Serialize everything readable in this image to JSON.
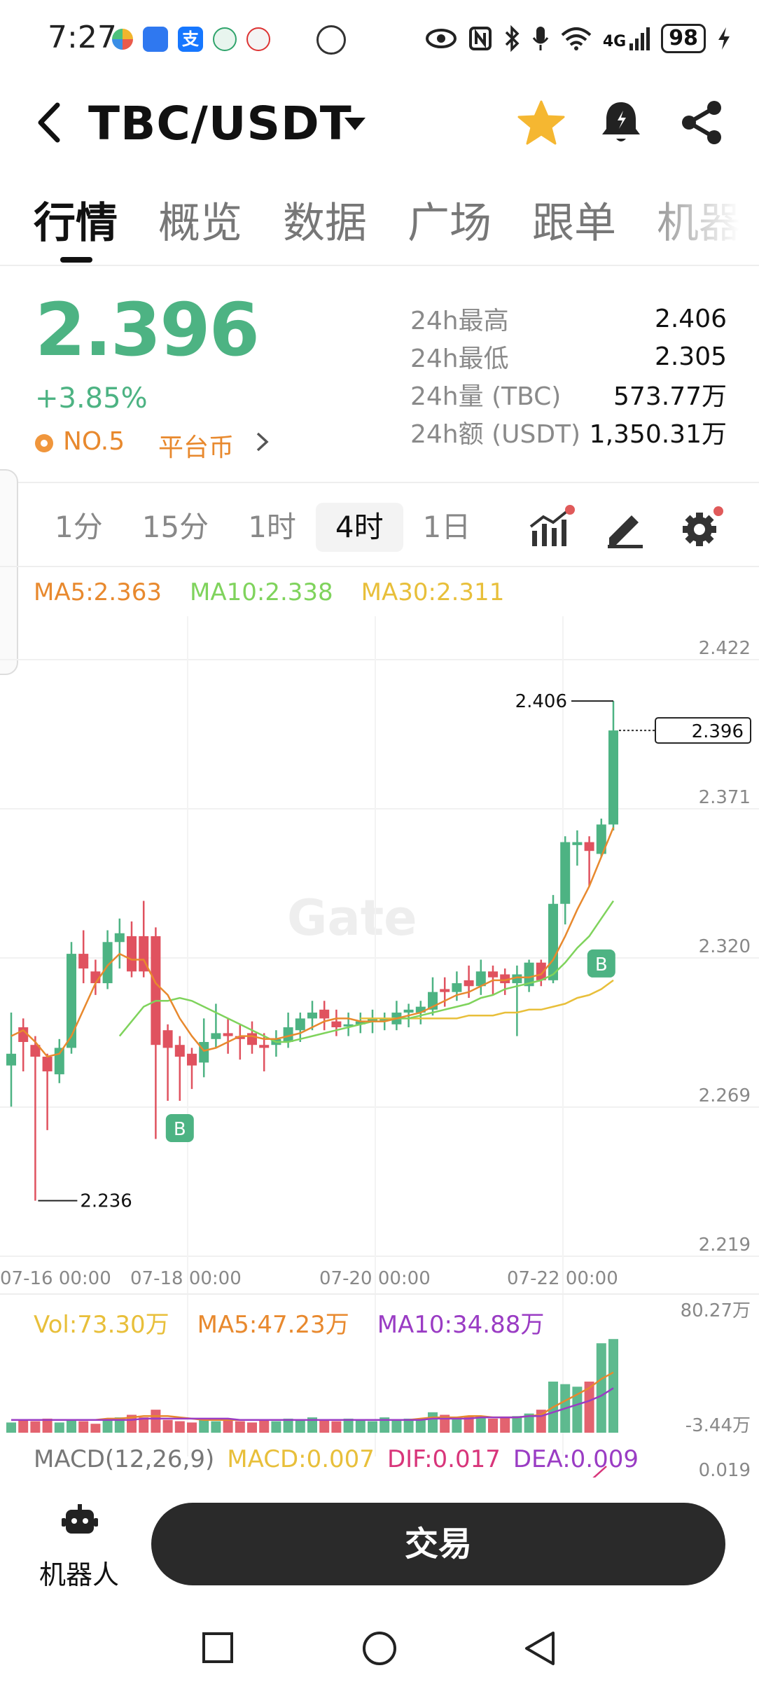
{
  "status_bar": {
    "time": "7:27",
    "network": "4G",
    "battery": "98"
  },
  "header": {
    "pair": "TBC/USDT"
  },
  "tabs": [
    {
      "label": "行情",
      "active": true
    },
    {
      "label": "概览",
      "active": false
    },
    {
      "label": "数据",
      "active": false
    },
    {
      "label": "广场",
      "active": false
    },
    {
      "label": "跟单",
      "active": false
    },
    {
      "label": "机器",
      "active": false
    }
  ],
  "price": {
    "last": "2.396",
    "change": "+3.85%",
    "rank": "NO.5",
    "category": "平台币"
  },
  "stats": [
    {
      "label": "24h最高",
      "value": "2.406"
    },
    {
      "label": "24h最低",
      "value": "2.305"
    },
    {
      "label": "24h量 (TBC)",
      "value": "573.77万"
    },
    {
      "label": "24h额 (USDT)",
      "value": "1,350.31万"
    }
  ],
  "intervals": [
    {
      "label": "1分",
      "active": false
    },
    {
      "label": "15分",
      "active": false
    },
    {
      "label": "1时",
      "active": false
    },
    {
      "label": "4时",
      "active": true
    },
    {
      "label": "1日",
      "active": false
    }
  ],
  "ma_legend": {
    "ma5": "MA5:2.363",
    "ma10": "MA10:2.338",
    "ma30": "MA30:2.311"
  },
  "colors": {
    "up": "#4db383",
    "down": "#e0525f",
    "ma5": "#e8892e",
    "ma10": "#7fd35c",
    "ma30": "#e8bf3a",
    "ma10_vol": "#9a3cc4"
  },
  "chart_data": {
    "type": "candlestick",
    "y_ticks": [
      "2.422",
      "2.371",
      "2.320",
      "2.269",
      "2.219"
    ],
    "x_ticks": [
      "07-16 00:00",
      "07-18 00:00",
      "07-20 00:00",
      "07-22 00:00"
    ],
    "high_label": "2.406",
    "low_label": "2.236",
    "current_label": "2.396",
    "watermark": "Gate",
    "buy_marker": "B",
    "candles": [
      [
        2.282,
        2.286,
        2.3,
        2.268
      ],
      [
        2.295,
        2.29,
        2.298,
        2.28
      ],
      [
        2.289,
        2.285,
        2.292,
        2.236
      ],
      [
        2.285,
        2.28,
        2.286,
        2.26
      ],
      [
        2.279,
        2.288,
        2.291,
        2.276
      ],
      [
        2.288,
        2.32,
        2.324,
        2.286
      ],
      [
        2.32,
        2.315,
        2.328,
        2.31
      ],
      [
        2.314,
        2.31,
        2.318,
        2.306
      ],
      [
        2.31,
        2.324,
        2.328,
        2.308
      ],
      [
        2.324,
        2.327,
        2.332,
        2.315
      ],
      [
        2.326,
        2.314,
        2.331,
        2.312
      ],
      [
        2.326,
        2.314,
        2.338,
        2.312
      ],
      [
        2.326,
        2.289,
        2.329,
        2.257
      ],
      [
        2.294,
        2.288,
        2.296,
        2.27
      ],
      [
        2.289,
        2.285,
        2.292,
        2.27
      ],
      [
        2.286,
        2.282,
        2.288,
        2.274
      ],
      [
        2.283,
        2.29,
        2.298,
        2.278
      ],
      [
        2.291,
        2.293,
        2.303,
        2.288
      ],
      [
        2.293,
        2.292,
        2.298,
        2.286
      ],
      [
        2.292,
        2.291,
        2.296,
        2.284
      ],
      [
        2.293,
        2.289,
        2.297,
        2.286
      ],
      [
        2.289,
        2.288,
        2.293,
        2.28
      ],
      [
        2.289,
        2.291,
        2.294,
        2.285
      ],
      [
        2.29,
        2.295,
        2.3,
        2.288
      ],
      [
        2.294,
        2.298,
        2.3,
        2.29
      ],
      [
        2.298,
        2.3,
        2.304,
        2.294
      ],
      [
        2.301,
        2.298,
        2.304,
        2.294
      ],
      [
        2.297,
        2.295,
        2.301,
        2.292
      ],
      [
        2.296,
        2.296,
        2.3,
        2.292
      ],
      [
        2.296,
        2.297,
        2.3,
        2.293
      ],
      [
        2.297,
        2.298,
        2.301,
        2.293
      ],
      [
        2.298,
        2.298,
        2.3,
        2.294
      ],
      [
        2.296,
        2.3,
        2.304,
        2.294
      ],
      [
        2.3,
        2.301,
        2.303,
        2.295
      ],
      [
        2.3,
        2.302,
        2.304,
        2.296
      ],
      [
        2.301,
        2.307,
        2.312,
        2.299
      ],
      [
        2.308,
        2.307,
        2.312,
        2.302
      ],
      [
        2.307,
        2.31,
        2.314,
        2.304
      ],
      [
        2.311,
        2.309,
        2.316,
        2.305
      ],
      [
        2.309,
        2.314,
        2.318,
        2.306
      ],
      [
        2.314,
        2.312,
        2.316,
        2.306
      ],
      [
        2.313,
        2.31,
        2.315,
        2.306
      ],
      [
        2.31,
        2.313,
        2.316,
        2.292
      ],
      [
        2.309,
        2.317,
        2.318,
        2.307
      ],
      [
        2.317,
        2.311,
        2.318,
        2.309
      ],
      [
        2.311,
        2.337,
        2.34,
        2.31
      ],
      [
        2.337,
        2.358,
        2.36,
        2.33
      ],
      [
        2.357,
        2.358,
        2.362,
        2.35
      ],
      [
        2.358,
        2.355,
        2.36,
        2.343
      ],
      [
        2.354,
        2.364,
        2.366,
        2.353
      ],
      [
        2.364,
        2.396,
        2.406,
        2.362
      ]
    ],
    "ma5": [
      2.292,
      2.294,
      2.29,
      2.285,
      2.286,
      2.292,
      2.301,
      2.31,
      2.316,
      2.32,
      2.318,
      2.318,
      2.31,
      2.306,
      2.298,
      2.292,
      2.287,
      2.288,
      2.29,
      2.292,
      2.292,
      2.291,
      2.291,
      2.292,
      2.293,
      2.295,
      2.297,
      2.298,
      2.298,
      2.297,
      2.297,
      2.297,
      2.298,
      2.299,
      2.3,
      2.302,
      2.304,
      2.306,
      2.307,
      2.309,
      2.311,
      2.311,
      2.312,
      2.312,
      2.313,
      2.318,
      2.326,
      2.335,
      2.343,
      2.353,
      2.363
    ],
    "ma10": [
      null,
      null,
      null,
      null,
      null,
      null,
      null,
      null,
      null,
      2.292,
      2.297,
      2.302,
      2.304,
      2.304,
      2.305,
      2.304,
      2.302,
      2.3,
      2.298,
      2.296,
      2.294,
      2.292,
      2.29,
      2.29,
      2.291,
      2.292,
      2.293,
      2.294,
      2.295,
      2.296,
      2.297,
      2.297,
      2.298,
      2.298,
      2.299,
      2.3,
      2.301,
      2.302,
      2.303,
      2.305,
      2.306,
      2.308,
      2.309,
      2.31,
      2.311,
      2.313,
      2.317,
      2.322,
      2.326,
      2.332,
      2.338
    ],
    "ma30": [
      null,
      null,
      null,
      null,
      null,
      null,
      null,
      null,
      null,
      null,
      null,
      null,
      null,
      null,
      null,
      null,
      null,
      null,
      null,
      null,
      null,
      null,
      null,
      null,
      null,
      null,
      null,
      null,
      null,
      2.298,
      2.298,
      2.298,
      2.298,
      2.298,
      2.298,
      2.298,
      2.298,
      2.298,
      2.299,
      2.299,
      2.299,
      2.3,
      2.3,
      2.301,
      2.301,
      2.302,
      2.303,
      2.305,
      2.306,
      2.308,
      2.311
    ],
    "volume": {
      "legend_vol": "Vol:73.30万",
      "legend_ma5": "MA5:47.23万",
      "legend_ma10": "MA10:34.88万",
      "y_ticks": [
        "80.27万",
        "-3.44万"
      ],
      "values": [
        8,
        10,
        9,
        11,
        8,
        10,
        9,
        7,
        10,
        12,
        14,
        12,
        18,
        10,
        9,
        8,
        10,
        9,
        11,
        9,
        8,
        10,
        9,
        11,
        10,
        12,
        10,
        9,
        11,
        10,
        9,
        12,
        10,
        11,
        10,
        16,
        14,
        12,
        13,
        12,
        11,
        12,
        13,
        15,
        18,
        40,
        38,
        36,
        40,
        70,
        73.3
      ],
      "ma5": [
        10,
        10,
        10,
        10,
        10,
        10,
        10,
        10,
        11,
        11,
        12,
        13,
        13,
        13,
        12,
        11,
        10,
        10,
        10,
        10,
        10,
        10,
        10,
        10,
        10,
        10,
        10,
        10,
        10,
        10,
        10,
        10,
        10,
        10,
        11,
        12,
        12,
        12,
        13,
        13,
        12,
        12,
        12,
        13,
        14,
        20,
        25,
        30,
        35,
        42,
        47.23
      ],
      "ma10": [
        10,
        10,
        10,
        10,
        10,
        10,
        10,
        10,
        10,
        10,
        10,
        11,
        11,
        11,
        11,
        11,
        11,
        11,
        11,
        10,
        10,
        10,
        10,
        10,
        10,
        10,
        10,
        10,
        10,
        10,
        10,
        10,
        10,
        10,
        10,
        11,
        11,
        11,
        11,
        12,
        12,
        12,
        12,
        13,
        13,
        16,
        19,
        22,
        25,
        29,
        34.88
      ]
    },
    "macd": {
      "label": "MACD(12,26,9)",
      "macd": "MACD:0.007",
      "dif": "DIF:0.017",
      "dea": "DEA:0.009",
      "y_tick": "0.019"
    }
  },
  "bottom": {
    "robot_label": "机器人",
    "trade_label": "交易"
  }
}
